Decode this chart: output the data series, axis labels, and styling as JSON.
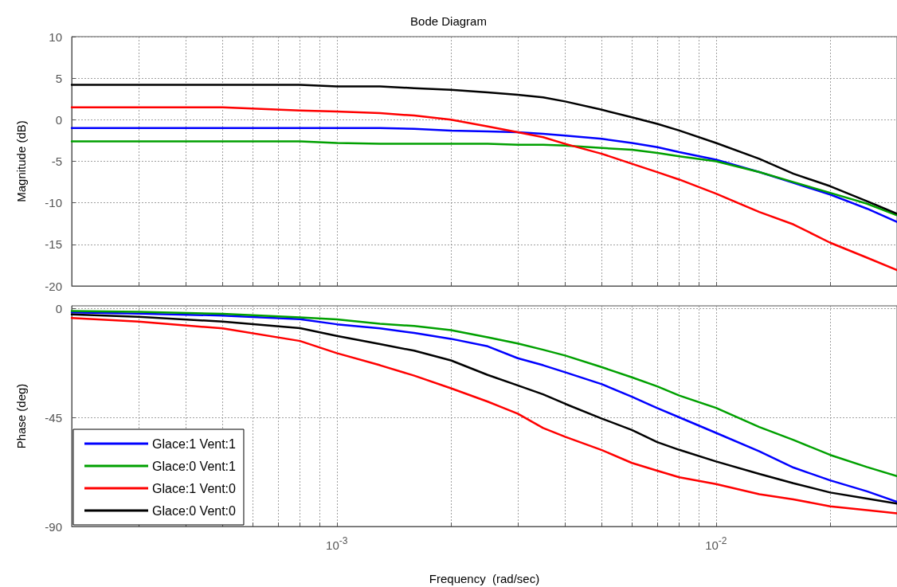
{
  "chart_data": [
    {
      "type": "line",
      "title": "Bode Diagram",
      "ylabel": "Magnitude (dB)",
      "log": "x",
      "grid": true,
      "tick_labels": "y",
      "line_style": "solid",
      "marker": "none",
      "x": [
        0.0002,
        0.0003,
        0.0005,
        0.0008,
        0.001,
        0.0013,
        0.0016,
        0.002,
        0.0025,
        0.003,
        0.0035,
        0.004,
        0.005,
        0.006,
        0.007,
        0.008,
        0.01,
        0.013,
        0.016,
        0.02,
        0.025,
        0.03
      ],
      "xlim": [
        0.0002,
        0.03
      ],
      "xticks": [
        {
          "value": 0.0003,
          "label": null
        },
        {
          "value": 0.0004,
          "label": null
        },
        {
          "value": 0.0005,
          "label": null
        },
        {
          "value": 0.0006,
          "label": null
        },
        {
          "value": 0.0007,
          "label": null
        },
        {
          "value": 0.0008,
          "label": null
        },
        {
          "value": 0.0009,
          "label": null
        },
        {
          "value": 0.001,
          "label": null
        },
        {
          "value": 0.002,
          "label": null
        },
        {
          "value": 0.003,
          "label": null
        },
        {
          "value": 0.004,
          "label": null
        },
        {
          "value": 0.005,
          "label": null
        },
        {
          "value": 0.006,
          "label": null
        },
        {
          "value": 0.007,
          "label": null
        },
        {
          "value": 0.008,
          "label": null
        },
        {
          "value": 0.009,
          "label": null
        },
        {
          "value": 0.01,
          "label": null
        },
        {
          "value": 0.02,
          "label": null
        },
        {
          "value": 0.03,
          "label": null
        }
      ],
      "ylim": [
        -20,
        10
      ],
      "yticks": [
        -20,
        -15,
        -10,
        -5,
        0,
        5,
        10
      ],
      "series": [
        {
          "color": "#0000ff",
          "values": [
            -1.0,
            -1.0,
            -1.0,
            -1.0,
            -1.0,
            -1.0,
            -1.1,
            -1.3,
            -1.4,
            -1.5,
            -1.7,
            -1.9,
            -2.3,
            -2.8,
            -3.3,
            -3.9,
            -4.8,
            -6.3,
            -7.6,
            -9.0,
            -10.7,
            -12.3
          ]
        },
        {
          "color": "#00a000",
          "values": [
            -2.6,
            -2.6,
            -2.6,
            -2.6,
            -2.8,
            -2.9,
            -2.9,
            -2.9,
            -2.9,
            -3.0,
            -3.0,
            -3.1,
            -3.4,
            -3.6,
            -4.0,
            -4.4,
            -5.0,
            -6.3,
            -7.5,
            -8.8,
            -10.1,
            -11.5
          ]
        },
        {
          "color": "#ff0000",
          "values": [
            1.5,
            1.5,
            1.5,
            1.1,
            1.0,
            0.8,
            0.5,
            0.0,
            -0.8,
            -1.5,
            -2.1,
            -2.9,
            -4.1,
            -5.3,
            -6.3,
            -7.2,
            -8.9,
            -11.1,
            -12.6,
            -14.8,
            -16.6,
            -18.1
          ]
        },
        {
          "color": "#000000",
          "values": [
            4.2,
            4.2,
            4.2,
            4.2,
            4.0,
            4.0,
            3.8,
            3.6,
            3.3,
            3.0,
            2.7,
            2.2,
            1.2,
            0.3,
            -0.5,
            -1.3,
            -2.8,
            -4.7,
            -6.5,
            -8.0,
            -9.8,
            -11.3
          ]
        }
      ]
    },
    {
      "type": "line",
      "ylabel": "Phase (deg)",
      "xlabel": "Frequency  (rad/sec)",
      "log": "x",
      "grid": true,
      "legend": "bottom left",
      "line_style": "solid",
      "marker": "none",
      "x": [
        0.0002,
        0.0003,
        0.0005,
        0.0008,
        0.001,
        0.0013,
        0.0016,
        0.002,
        0.0025,
        0.003,
        0.0035,
        0.004,
        0.005,
        0.006,
        0.007,
        0.008,
        0.01,
        0.013,
        0.016,
        0.02,
        0.025,
        0.03
      ],
      "xlim": [
        0.0002,
        0.03
      ],
      "xticks": [
        {
          "value": 0.0003,
          "label": null
        },
        {
          "value": 0.0004,
          "label": null
        },
        {
          "value": 0.0005,
          "label": null
        },
        {
          "value": 0.0006,
          "label": null
        },
        {
          "value": 0.0007,
          "label": null
        },
        {
          "value": 0.0008,
          "label": null
        },
        {
          "value": 0.0009,
          "label": null
        },
        {
          "value": 0.001,
          "label": "10$^{-3}$"
        },
        {
          "value": 0.002,
          "label": null
        },
        {
          "value": 0.003,
          "label": null
        },
        {
          "value": 0.004,
          "label": null
        },
        {
          "value": 0.005,
          "label": null
        },
        {
          "value": 0.006,
          "label": null
        },
        {
          "value": 0.007,
          "label": null
        },
        {
          "value": 0.008,
          "label": null
        },
        {
          "value": 0.009,
          "label": null
        },
        {
          "value": 0.01,
          "label": "10$^{-2}$"
        },
        {
          "value": 0.02,
          "label": null
        },
        {
          "value": 0.03,
          "label": null
        }
      ],
      "ylim": [
        -90,
        1
      ],
      "yticks": [
        -90,
        -45,
        0
      ],
      "series": [
        {
          "name": "Glace:1 Vent:1",
          "color": "#0000ff",
          "values": [
            -1.7,
            -2.2,
            -3.0,
            -4.5,
            -6.6,
            -8.3,
            -10.2,
            -12.6,
            -15.7,
            -20.6,
            -23.5,
            -26.4,
            -31.3,
            -36.5,
            -41.2,
            -45.0,
            -51.4,
            -59.0,
            -65.7,
            -71.0,
            -75.5,
            -79.8
          ]
        },
        {
          "name": "Glace:0 Vent:1",
          "color": "#00a000",
          "values": [
            -1.1,
            -1.5,
            -2.3,
            -3.8,
            -4.6,
            -6.4,
            -7.3,
            -9.0,
            -12.0,
            -14.5,
            -17.1,
            -19.5,
            -24.3,
            -28.5,
            -32.2,
            -36.0,
            -41.1,
            -49.0,
            -54.3,
            -60.5,
            -65.5,
            -69.2
          ]
        },
        {
          "name": "Glace:1 Vent:0",
          "color": "#ff0000",
          "values": [
            -4.0,
            -5.5,
            -8.3,
            -13.5,
            -18.5,
            -23.5,
            -27.8,
            -33.0,
            -38.5,
            -43.5,
            -49.4,
            -53.0,
            -58.5,
            -63.8,
            -67.0,
            -69.7,
            -72.5,
            -76.7,
            -78.8,
            -81.7,
            -83.3,
            -84.6
          ]
        },
        {
          "name": "Glace:0 Vent:0",
          "color": "#000000",
          "values": [
            -2.5,
            -3.5,
            -5.5,
            -8.2,
            -11.4,
            -14.8,
            -17.5,
            -21.5,
            -27.5,
            -31.8,
            -35.5,
            -39.4,
            -45.5,
            -50.2,
            -55.2,
            -58.4,
            -63.2,
            -68.3,
            -72.2,
            -76.0,
            -78.5,
            -80.6
          ]
        }
      ]
    }
  ]
}
